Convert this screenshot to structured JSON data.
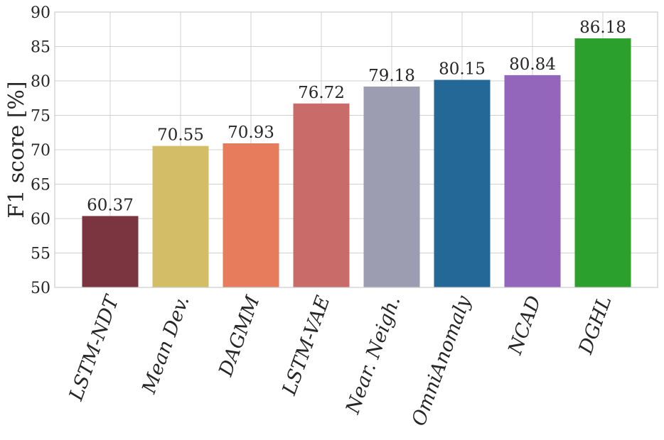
{
  "chart_data": {
    "type": "bar",
    "categories": [
      "LSTM-NDT",
      "Mean Dev.",
      "DAGMM",
      "LSTM-VAE",
      "Near. Neigh.",
      "OmniAnomaly",
      "NCAD",
      "DGHL"
    ],
    "values": [
      60.37,
      70.55,
      70.93,
      76.72,
      79.18,
      80.15,
      80.84,
      86.18
    ],
    "value_labels": [
      "60.37",
      "70.55",
      "70.93",
      "76.72",
      "79.18",
      "80.15",
      "80.84",
      "86.18"
    ],
    "colors": [
      "#7a3540",
      "#d4bd67",
      "#e77c5d",
      "#c96c69",
      "#9d9db2",
      "#236896",
      "#9366bb",
      "#2ca02d"
    ],
    "title": "",
    "xlabel": "",
    "ylabel": "F1 score [%]",
    "ylim": [
      50,
      90
    ],
    "yticks": [
      "50",
      "55",
      "60",
      "65",
      "70",
      "75",
      "80",
      "85",
      "90"
    ],
    "grid": true,
    "legend": "none"
  }
}
